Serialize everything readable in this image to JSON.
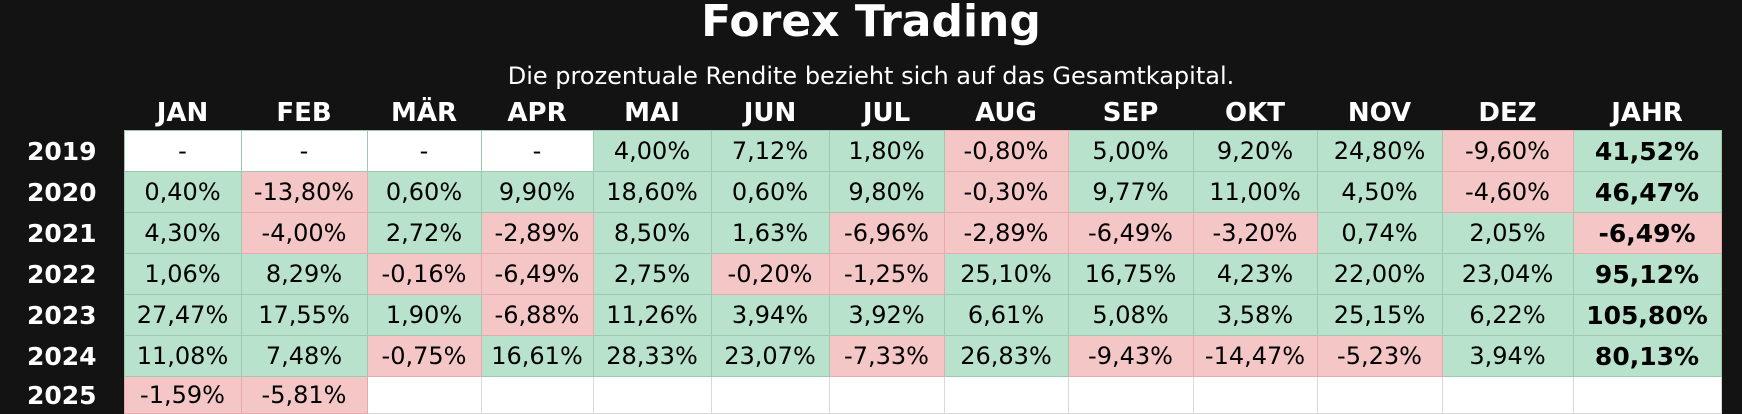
{
  "title": "Forex Trading",
  "subtitle": "Die prozentuale Rendite bezieht sich auf das Gesamtkapital.",
  "columns": [
    "JAN",
    "FEB",
    "MÄR",
    "APR",
    "MAI",
    "JUN",
    "JUL",
    "AUG",
    "SEP",
    "OKT",
    "NOV",
    "DEZ",
    "JAHR"
  ],
  "rows": [
    {
      "year": "2019",
      "values": [
        "-",
        "-",
        "-",
        "-",
        "4,00%",
        "7,12%",
        "1,80%",
        "-0,80%",
        "5,00%",
        "9,20%",
        "24,80%",
        "-9,60%",
        "41,52%"
      ]
    },
    {
      "year": "2020",
      "values": [
        "0,40%",
        "-13,80%",
        "0,60%",
        "9,90%",
        "18,60%",
        "0,60%",
        "9,80%",
        "-0,30%",
        "9,77%",
        "11,00%",
        "4,50%",
        "-4,60%",
        "46,47%"
      ]
    },
    {
      "year": "2021",
      "values": [
        "4,30%",
        "-4,00%",
        "2,72%",
        "-2,89%",
        "8,50%",
        "1,63%",
        "-6,96%",
        "-2,89%",
        "-6,49%",
        "-3,20%",
        "0,74%",
        "2,05%",
        "-6,49%"
      ]
    },
    {
      "year": "2022",
      "values": [
        "1,06%",
        "8,29%",
        "-0,16%",
        "-6,49%",
        "2,75%",
        "-0,20%",
        "-1,25%",
        "25,10%",
        "16,75%",
        "4,23%",
        "22,00%",
        "23,04%",
        "95,12%"
      ]
    },
    {
      "year": "2023",
      "values": [
        "27,47%",
        "17,55%",
        "1,90%",
        "-6,88%",
        "11,26%",
        "3,94%",
        "3,92%",
        "6,61%",
        "5,08%",
        "3,58%",
        "25,15%",
        "6,22%",
        "105,80%"
      ]
    },
    {
      "year": "2024",
      "values": [
        "11,08%",
        "7,48%",
        "-0,75%",
        "16,61%",
        "28,33%",
        "23,07%",
        "-7,33%",
        "26,83%",
        "-9,43%",
        "-14,47%",
        "-5,23%",
        "3,94%",
        "80,13%"
      ]
    },
    {
      "year": "2025",
      "values": [
        "-1,59%",
        "-5,81%",
        "",
        "",
        "",
        "",
        "",
        "",
        "",
        "",
        "",
        "",
        ""
      ]
    }
  ],
  "colors": {
    "background": "#131313",
    "positive": "#b8e2cc",
    "negative": "#f4c6c6",
    "neutral": "#ffffff"
  }
}
